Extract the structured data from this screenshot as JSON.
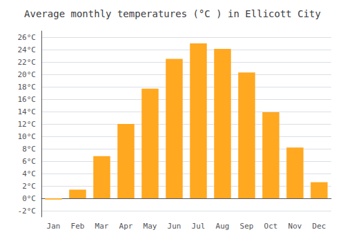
{
  "chart_data": {
    "type": "bar",
    "title": "Average monthly temperatures (°C ) in Ellicott City",
    "categories": [
      "Jan",
      "Feb",
      "Mar",
      "Apr",
      "May",
      "Jun",
      "Jul",
      "Aug",
      "Sep",
      "Oct",
      "Nov",
      "Dec"
    ],
    "values": [
      -0.2,
      1.4,
      6.8,
      12.0,
      17.7,
      22.5,
      25.0,
      24.1,
      20.3,
      13.9,
      8.2,
      2.6
    ],
    "color": "#FFA820",
    "ylim": [
      -3,
      27
    ],
    "yticks": [
      {
        "value": -2,
        "label": "-2°C"
      },
      {
        "value": 0,
        "label": "0°C"
      },
      {
        "value": 2,
        "label": "2°C"
      },
      {
        "value": 4,
        "label": "4°C"
      },
      {
        "value": 6,
        "label": "6°C"
      },
      {
        "value": 8,
        "label": "8°C"
      },
      {
        "value": 10,
        "label": "10°C"
      },
      {
        "value": 12,
        "label": "12°C"
      },
      {
        "value": 14,
        "label": "14°C"
      },
      {
        "value": 16,
        "label": "16°C"
      },
      {
        "value": 18,
        "label": "18°C"
      },
      {
        "value": 20,
        "label": "20°C"
      },
      {
        "value": 22,
        "label": "22°C"
      },
      {
        "value": 24,
        "label": "24°C"
      },
      {
        "value": 26,
        "label": "26°C"
      }
    ],
    "grid": true
  }
}
